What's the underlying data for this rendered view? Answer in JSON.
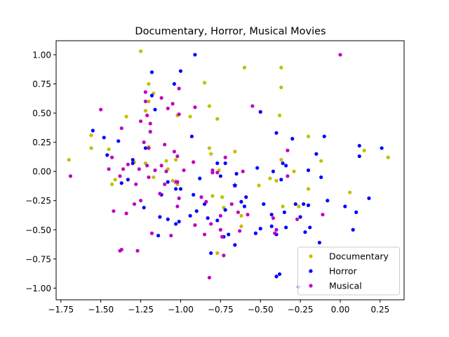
{
  "chart_data": {
    "type": "scatter",
    "title": "Documentary, Horror, Musical Movies",
    "xlabel": "",
    "ylabel": "",
    "xlim": [
      -1.78,
      0.4
    ],
    "ylim": [
      -1.1,
      1.12
    ],
    "x_ticks": [
      -1.75,
      -1.5,
      -1.25,
      -1.0,
      -0.75,
      -0.5,
      -0.25,
      0.0,
      0.25
    ],
    "x_tick_labels": [
      "−1.75",
      "−1.50",
      "−1.25",
      "−1.00",
      "−0.75",
      "−0.50",
      "−0.25",
      "0.00",
      "0.25"
    ],
    "y_ticks": [
      -1.0,
      -0.75,
      -0.5,
      -0.25,
      0.0,
      0.25,
      0.5,
      0.75,
      1.0
    ],
    "y_tick_labels": [
      "−1.00",
      "−0.75",
      "−0.50",
      "−0.25",
      "0.00",
      "0.25",
      "0.50",
      "0.75",
      "1.00"
    ],
    "grid": false,
    "legend_position": "lower-right",
    "series": [
      {
        "name": "Documentary",
        "color": "#bfbf00",
        "points": [
          [
            -1.25,
            1.03
          ],
          [
            -0.6,
            0.89
          ],
          [
            -0.37,
            0.89
          ],
          [
            -1.2,
            0.75
          ],
          [
            -0.85,
            0.76
          ],
          [
            -0.37,
            0.72
          ],
          [
            -1.17,
            0.67
          ],
          [
            -0.82,
            0.56
          ],
          [
            -1.2,
            0.6
          ],
          [
            -1.02,
            0.48
          ],
          [
            -0.38,
            0.48
          ],
          [
            -0.77,
            0.45
          ],
          [
            -1.34,
            0.47
          ],
          [
            -0.94,
            0.47
          ],
          [
            -1.22,
            0.52
          ],
          [
            -1.56,
            0.31
          ],
          [
            -1.45,
            0.19
          ],
          [
            -1.2,
            0.21
          ],
          [
            -0.82,
            0.2
          ],
          [
            -0.2,
            0.3
          ],
          [
            0.15,
            0.18
          ],
          [
            0.3,
            0.12
          ],
          [
            -1.03,
            0.1
          ],
          [
            -1.09,
            0.09
          ],
          [
            -1.22,
            0.07
          ],
          [
            -1.29,
            0.08
          ],
          [
            -0.37,
            0.1
          ],
          [
            -0.76,
            0.01
          ],
          [
            -1.08,
            0.02
          ],
          [
            -0.66,
            0.17
          ],
          [
            -1.7,
            0.1
          ],
          [
            -1.56,
            0.2
          ],
          [
            -1.41,
            -0.07
          ],
          [
            -1.43,
            -0.11
          ],
          [
            -1.17,
            -0.05
          ],
          [
            -1.02,
            -0.11
          ],
          [
            -0.8,
            -0.21
          ],
          [
            -0.74,
            -0.22
          ],
          [
            -0.51,
            -0.12
          ],
          [
            -0.44,
            -0.06
          ],
          [
            -0.36,
            -0.3
          ],
          [
            -0.2,
            -0.15
          ],
          [
            -0.4,
            -0.08
          ],
          [
            -0.29,
            0.0
          ],
          [
            0.06,
            -0.18
          ],
          [
            -0.62,
            -0.38
          ],
          [
            -0.62,
            -0.47
          ],
          [
            -0.73,
            -0.31
          ],
          [
            -0.77,
            -0.7
          ],
          [
            -0.26,
            -0.3
          ],
          [
            -1.05,
            -0.08
          ],
          [
            -0.12,
            0.09
          ],
          [
            -0.7,
            -0.54
          ]
        ],
        "star": [
          -0.81,
          0.15
        ]
      },
      {
        "name": "Horror",
        "color": "#0000ff",
        "points": [
          [
            -0.91,
            1.0
          ],
          [
            -1.18,
            0.85
          ],
          [
            -1.0,
            0.86
          ],
          [
            -1.18,
            0.65
          ],
          [
            -1.04,
            0.75
          ],
          [
            -1.16,
            0.53
          ],
          [
            -0.5,
            0.51
          ],
          [
            -1.55,
            0.35
          ],
          [
            -1.48,
            0.29
          ],
          [
            -1.39,
            0.26
          ],
          [
            -1.22,
            0.2
          ],
          [
            -0.93,
            0.3
          ],
          [
            -0.4,
            0.33
          ],
          [
            -0.3,
            0.28
          ],
          [
            -0.1,
            0.3
          ],
          [
            0.12,
            0.22
          ],
          [
            0.26,
            0.2
          ],
          [
            -1.46,
            0.14
          ],
          [
            -1.3,
            0.1
          ],
          [
            -1.3,
            0.07
          ],
          [
            -0.77,
            0.07
          ],
          [
            -0.72,
            0.07
          ],
          [
            -0.52,
            0.03
          ],
          [
            -0.36,
            0.07
          ],
          [
            -0.34,
            0.05
          ],
          [
            -0.2,
            0.01
          ],
          [
            -0.15,
            0.15
          ],
          [
            -1.33,
            -0.07
          ],
          [
            -1.08,
            -0.09
          ],
          [
            -0.88,
            -0.06
          ],
          [
            -0.75,
            -0.04
          ],
          [
            -0.65,
            -0.02
          ],
          [
            -0.42,
            0.0
          ],
          [
            -0.37,
            -0.07
          ],
          [
            -0.12,
            -0.05
          ],
          [
            0.12,
            0.13
          ],
          [
            -1.0,
            -0.15
          ],
          [
            -1.12,
            -0.2
          ],
          [
            -0.92,
            -0.2
          ],
          [
            -0.85,
            -0.28
          ],
          [
            -0.72,
            -0.33
          ],
          [
            -0.62,
            -0.26
          ],
          [
            -0.59,
            -0.22
          ],
          [
            -0.6,
            -0.3
          ],
          [
            -0.48,
            -0.28
          ],
          [
            -0.43,
            -0.37
          ],
          [
            -0.28,
            -0.28
          ],
          [
            -0.23,
            -0.28
          ],
          [
            -0.2,
            -0.29
          ],
          [
            -0.08,
            -0.25
          ],
          [
            0.03,
            -0.3
          ],
          [
            0.1,
            -0.35
          ],
          [
            0.18,
            -0.23
          ],
          [
            -1.23,
            -0.31
          ],
          [
            -1.13,
            -0.39
          ],
          [
            -1.08,
            -0.41
          ],
          [
            -1.03,
            -0.45
          ],
          [
            -1.01,
            -0.43
          ],
          [
            -0.94,
            -0.38
          ],
          [
            -0.9,
            -0.34
          ],
          [
            -0.83,
            -0.4
          ],
          [
            -0.77,
            -0.42
          ],
          [
            -0.7,
            -0.54
          ],
          [
            -0.73,
            -0.56
          ],
          [
            -0.66,
            -0.63
          ],
          [
            -0.53,
            -0.53
          ],
          [
            -0.5,
            -0.49
          ],
          [
            -0.43,
            -0.47
          ],
          [
            -0.35,
            -0.35
          ],
          [
            -0.34,
            -0.48
          ],
          [
            -0.25,
            -0.39
          ],
          [
            -0.22,
            -0.52
          ],
          [
            -0.19,
            -0.48
          ],
          [
            -0.13,
            -0.61
          ],
          [
            0.08,
            -0.5
          ],
          [
            -0.4,
            -0.9
          ],
          [
            -0.38,
            -0.88
          ],
          [
            -0.26,
            -0.99
          ],
          [
            -0.19,
            -0.86
          ],
          [
            -1.14,
            -0.55
          ],
          [
            -0.81,
            -0.7
          ],
          [
            -1.37,
            -0.1
          ],
          [
            -1.03,
            -0.15
          ],
          [
            -0.66,
            -0.12
          ],
          [
            -0.4,
            -0.54
          ]
        ],
        "star": [
          -0.66,
          -0.12
        ]
      },
      {
        "name": "Musical",
        "color": "#bf00bf",
        "points": [
          [
            0.0,
            1.0
          ],
          [
            -1.22,
            0.68
          ],
          [
            -1.01,
            0.71
          ],
          [
            -1.22,
            0.6
          ],
          [
            -1.12,
            0.63
          ],
          [
            -1.05,
            0.58
          ],
          [
            -1.5,
            0.53
          ],
          [
            -0.91,
            0.55
          ],
          [
            -0.55,
            0.56
          ],
          [
            -1.21,
            0.48
          ],
          [
            -1.08,
            0.54
          ],
          [
            -1.01,
            0.49
          ],
          [
            -1.25,
            0.43
          ],
          [
            -1.19,
            0.41
          ],
          [
            -1.37,
            0.37
          ],
          [
            -1.19,
            0.34
          ],
          [
            -1.23,
            0.25
          ],
          [
            -1.1,
            0.23
          ],
          [
            -1.2,
            0.2
          ],
          [
            -1.04,
            0.17
          ],
          [
            -1.43,
            0.12
          ],
          [
            -1.33,
            0.06
          ],
          [
            -1.21,
            0.05
          ],
          [
            -1.12,
            0.05
          ],
          [
            -0.92,
            0.08
          ],
          [
            -1.02,
            0.13
          ],
          [
            -0.72,
            0.12
          ],
          [
            -0.33,
            0.18
          ],
          [
            -1.45,
            0.02
          ],
          [
            -1.36,
            0.02
          ],
          [
            -1.26,
            0.02
          ],
          [
            -1.16,
            0.01
          ],
          [
            -1.09,
            0.0
          ],
          [
            -0.98,
            0.01
          ],
          [
            -0.8,
            0.01
          ],
          [
            -0.8,
            -0.01
          ],
          [
            -0.77,
            -0.01
          ],
          [
            -0.61,
            0.0
          ],
          [
            -0.33,
            -0.04
          ],
          [
            -1.69,
            -0.04
          ],
          [
            -1.38,
            -0.04
          ],
          [
            -1.2,
            -0.05
          ],
          [
            -1.28,
            -0.11
          ],
          [
            -1.1,
            -0.11
          ],
          [
            -1.13,
            -0.19
          ],
          [
            -1.01,
            -0.23
          ],
          [
            -0.87,
            -0.22
          ],
          [
            -0.84,
            -0.26
          ],
          [
            -0.68,
            -0.28
          ],
          [
            -1.42,
            -0.34
          ],
          [
            -1.34,
            -0.36
          ],
          [
            -1.29,
            -0.28
          ],
          [
            -1.25,
            -0.25
          ],
          [
            -1.02,
            -0.3
          ],
          [
            -0.75,
            -0.38
          ],
          [
            -0.64,
            -0.35
          ],
          [
            -0.58,
            -0.37
          ],
          [
            -0.42,
            -0.4
          ],
          [
            -0.81,
            -0.45
          ],
          [
            -0.91,
            -0.46
          ],
          [
            -0.75,
            -0.5
          ],
          [
            -0.63,
            -0.51
          ],
          [
            -1.18,
            -0.53
          ],
          [
            -1.06,
            -0.55
          ],
          [
            -0.85,
            -0.54
          ],
          [
            -0.74,
            -0.56
          ],
          [
            -1.37,
            -0.67
          ],
          [
            -1.38,
            -0.68
          ],
          [
            -1.27,
            -0.68
          ],
          [
            -0.73,
            -0.72
          ],
          [
            -0.82,
            -0.91
          ],
          [
            -0.27,
            -0.41
          ],
          [
            -0.11,
            -0.37
          ],
          [
            -0.4,
            -0.5
          ],
          [
            -1.02,
            -0.09
          ],
          [
            -0.41,
            -0.53
          ]
        ],
        "star": [
          -1.03,
          -0.09
        ]
      }
    ]
  }
}
